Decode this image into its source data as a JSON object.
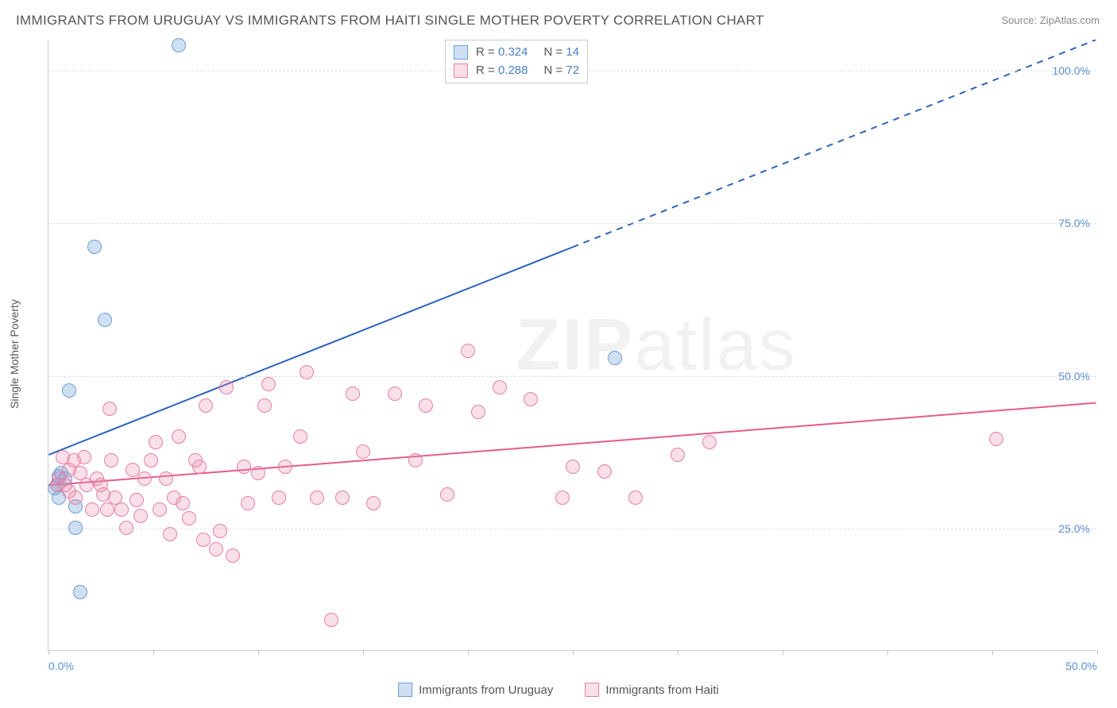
{
  "title": "IMMIGRANTS FROM URUGUAY VS IMMIGRANTS FROM HAITI SINGLE MOTHER POVERTY CORRELATION CHART",
  "source": "Source: ZipAtlas.com",
  "ylabel": "Single Mother Poverty",
  "watermark": {
    "part1": "ZIP",
    "part2": "atlas"
  },
  "chart": {
    "type": "scatter",
    "xlim": [
      0,
      50
    ],
    "ylim": [
      5,
      105
    ],
    "yticks": [
      25,
      50,
      75,
      100
    ],
    "ytick_labels": [
      "25.0%",
      "50.0%",
      "75.0%",
      "100.0%"
    ],
    "xticks": [
      0,
      5,
      10,
      15,
      20,
      25,
      30,
      35,
      40,
      45,
      50
    ],
    "xtick_labels_shown": {
      "0": "0.0%",
      "50": "50.0%"
    },
    "grid_color": "#e0e0e0",
    "background_color": "#ffffff",
    "axis_color": "#d0d0d0",
    "tick_label_color": "#5a8fd6",
    "series": [
      {
        "name": "Immigrants from Uruguay",
        "color_fill": "rgba(120,165,220,0.35)",
        "color_stroke": "#6a9cd8",
        "marker": "circle",
        "marker_size": 18,
        "R": 0.324,
        "N": 14,
        "trend": {
          "color": "#2f63c0",
          "width": 2,
          "start": [
            0,
            37
          ],
          "solid_end": [
            25,
            71
          ],
          "dash_end": [
            50,
            105
          ]
        },
        "points": [
          [
            0.3,
            31.5
          ],
          [
            0.4,
            32
          ],
          [
            0.5,
            33.5
          ],
          [
            0.5,
            30
          ],
          [
            0.6,
            34
          ],
          [
            1.0,
            47.5
          ],
          [
            1.3,
            28.5
          ],
          [
            1.3,
            25
          ],
          [
            1.5,
            14.5
          ],
          [
            2.2,
            71
          ],
          [
            2.7,
            59
          ],
          [
            6.2,
            104
          ],
          [
            0.8,
            33
          ],
          [
            27.0,
            52.8
          ]
        ]
      },
      {
        "name": "Immigrants from Haiti",
        "color_fill": "rgba(235,140,170,0.28)",
        "color_stroke": "#e87fa3",
        "marker": "circle",
        "marker_size": 18,
        "R": 0.288,
        "N": 72,
        "trend": {
          "color": "#e45c8a",
          "width": 2,
          "start": [
            0,
            32
          ],
          "solid_end": [
            50,
            45.5
          ],
          "dash_end": null
        },
        "points": [
          [
            0.4,
            32
          ],
          [
            0.5,
            33
          ],
          [
            0.7,
            36.5
          ],
          [
            0.8,
            32
          ],
          [
            1.0,
            34.5
          ],
          [
            1.0,
            31
          ],
          [
            1.2,
            36
          ],
          [
            1.3,
            30
          ],
          [
            1.5,
            34
          ],
          [
            1.7,
            36.5
          ],
          [
            1.8,
            32
          ],
          [
            2.1,
            28
          ],
          [
            2.3,
            33
          ],
          [
            2.5,
            32
          ],
          [
            2.6,
            30.5
          ],
          [
            2.8,
            28
          ],
          [
            2.9,
            44.5
          ],
          [
            3.0,
            36
          ],
          [
            3.2,
            30
          ],
          [
            3.5,
            28
          ],
          [
            3.7,
            25
          ],
          [
            4.0,
            34.5
          ],
          [
            4.2,
            29.5
          ],
          [
            4.4,
            27
          ],
          [
            4.6,
            33
          ],
          [
            4.9,
            36
          ],
          [
            5.1,
            39
          ],
          [
            5.3,
            28
          ],
          [
            5.6,
            33
          ],
          [
            5.8,
            24
          ],
          [
            6.0,
            30
          ],
          [
            6.2,
            40
          ],
          [
            6.4,
            29
          ],
          [
            6.7,
            26.5
          ],
          [
            7.0,
            36
          ],
          [
            7.2,
            35
          ],
          [
            7.4,
            23
          ],
          [
            7.5,
            45
          ],
          [
            8.0,
            21.5
          ],
          [
            8.2,
            24.5
          ],
          [
            8.5,
            48
          ],
          [
            8.8,
            20.5
          ],
          [
            9.3,
            35
          ],
          [
            9.5,
            29
          ],
          [
            10.0,
            34
          ],
          [
            10.3,
            45
          ],
          [
            10.5,
            48.5
          ],
          [
            11.0,
            30
          ],
          [
            11.3,
            35
          ],
          [
            12.0,
            40
          ],
          [
            12.3,
            50.5
          ],
          [
            12.8,
            30
          ],
          [
            13.5,
            10
          ],
          [
            14.0,
            30
          ],
          [
            14.5,
            47
          ],
          [
            15.0,
            37.5
          ],
          [
            15.5,
            29
          ],
          [
            16.5,
            47
          ],
          [
            17.5,
            36
          ],
          [
            18.0,
            45
          ],
          [
            19.0,
            30.5
          ],
          [
            20.0,
            54
          ],
          [
            20.5,
            44
          ],
          [
            21.5,
            48
          ],
          [
            23.0,
            46
          ],
          [
            24.5,
            30
          ],
          [
            25.0,
            35
          ],
          [
            26.5,
            34.2
          ],
          [
            28.0,
            30
          ],
          [
            30.0,
            37
          ],
          [
            31.5,
            39
          ],
          [
            45.2,
            39.5
          ]
        ]
      }
    ]
  },
  "stats_legend": {
    "rows": [
      {
        "swatch": "blue",
        "R_label": "R = ",
        "R": "0.324",
        "N_label": "N = ",
        "N": "14"
      },
      {
        "swatch": "pink",
        "R_label": "R = ",
        "R": "0.288",
        "N_label": "N = ",
        "N": "72"
      }
    ]
  },
  "bottom_legend": {
    "items": [
      {
        "swatch": "blue",
        "label": "Immigrants from Uruguay"
      },
      {
        "swatch": "pink",
        "label": "Immigrants from Haiti"
      }
    ]
  }
}
